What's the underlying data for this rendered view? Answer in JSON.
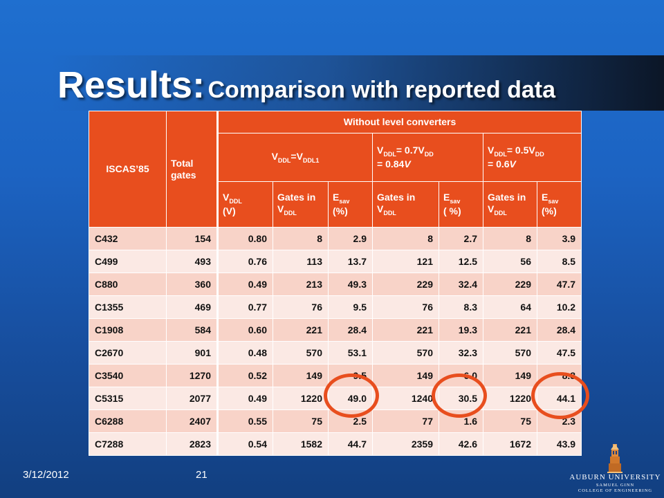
{
  "slide": {
    "title_main": "Results:",
    "title_sub": "Comparison with reported data",
    "date": "3/12/2012",
    "page_number": "21"
  },
  "table": {
    "header": {
      "col_circuit": "ISCAS’85",
      "col_total": "Total gates",
      "group_without": "Without level converters",
      "group1": {
        "v": "V",
        "s1": "DDL",
        "mid": "=V",
        "s2": "DDL1"
      },
      "group2": {
        "v1": "V",
        "s1": "DDL",
        "mid": "= 0.7V",
        "s2": "DD",
        "rest": " = 0.84",
        "unit": "V"
      },
      "group3": {
        "v1": "V",
        "s1": "DDL",
        "mid": "= 0.5V",
        "s2": "DD",
        "rest": " = 0.6",
        "unit": "V"
      },
      "sub_vddl": {
        "v": "V",
        "s": "DDL",
        "unit": "(V)"
      },
      "sub_gates": {
        "pre": "Gates in V",
        "s": "DDL"
      },
      "sub_esav": {
        "e": "E",
        "s": "sav",
        "unit": "(%)"
      },
      "sub_esav_space": {
        "e": "E",
        "s": "sav",
        "unit": "( %)"
      }
    },
    "rows": [
      [
        "C432",
        "154",
        "0.80",
        "8",
        "2.9",
        "8",
        "2.7",
        "8",
        "3.9"
      ],
      [
        "C499",
        "493",
        "0.76",
        "113",
        "13.7",
        "121",
        "12.5",
        "56",
        "8.5"
      ],
      [
        "C880",
        "360",
        "0.49",
        "213",
        "49.3",
        "229",
        "32.4",
        "229",
        "47.7"
      ],
      [
        "C1355",
        "469",
        "0.77",
        "76",
        "9.5",
        "76",
        "8.3",
        "64",
        "10.2"
      ],
      [
        "C1908",
        "584",
        "0.60",
        "221",
        "28.4",
        "221",
        "19.3",
        "221",
        "28.4"
      ],
      [
        "C2670",
        "901",
        "0.48",
        "570",
        "53.1",
        "570",
        "32.3",
        "570",
        "47.5"
      ],
      [
        "C3540",
        "1270",
        "0.52",
        "149",
        "9.5",
        "149",
        "6.0",
        "149",
        "8.8"
      ],
      [
        "C5315",
        "2077",
        "0.49",
        "1220",
        "49.0",
        "1240",
        "30.5",
        "1220",
        "44.1"
      ],
      [
        "C6288",
        "2407",
        "0.55",
        "75",
        "2.5",
        "77",
        "1.6",
        "75",
        "2.3"
      ],
      [
        "C7288",
        "2823",
        "0.54",
        "1582",
        "44.7",
        "2359",
        "42.6",
        "1672",
        "43.9"
      ]
    ]
  },
  "logo": {
    "university": "AUBURN UNIVERSITY",
    "line2": "SAMUEL GINN",
    "line3": "COLLEGE OF ENGINEERING"
  },
  "colors": {
    "accent": "#e84e1e",
    "row_odd": "#f8d3c8",
    "row_even": "#fbe9e4"
  }
}
